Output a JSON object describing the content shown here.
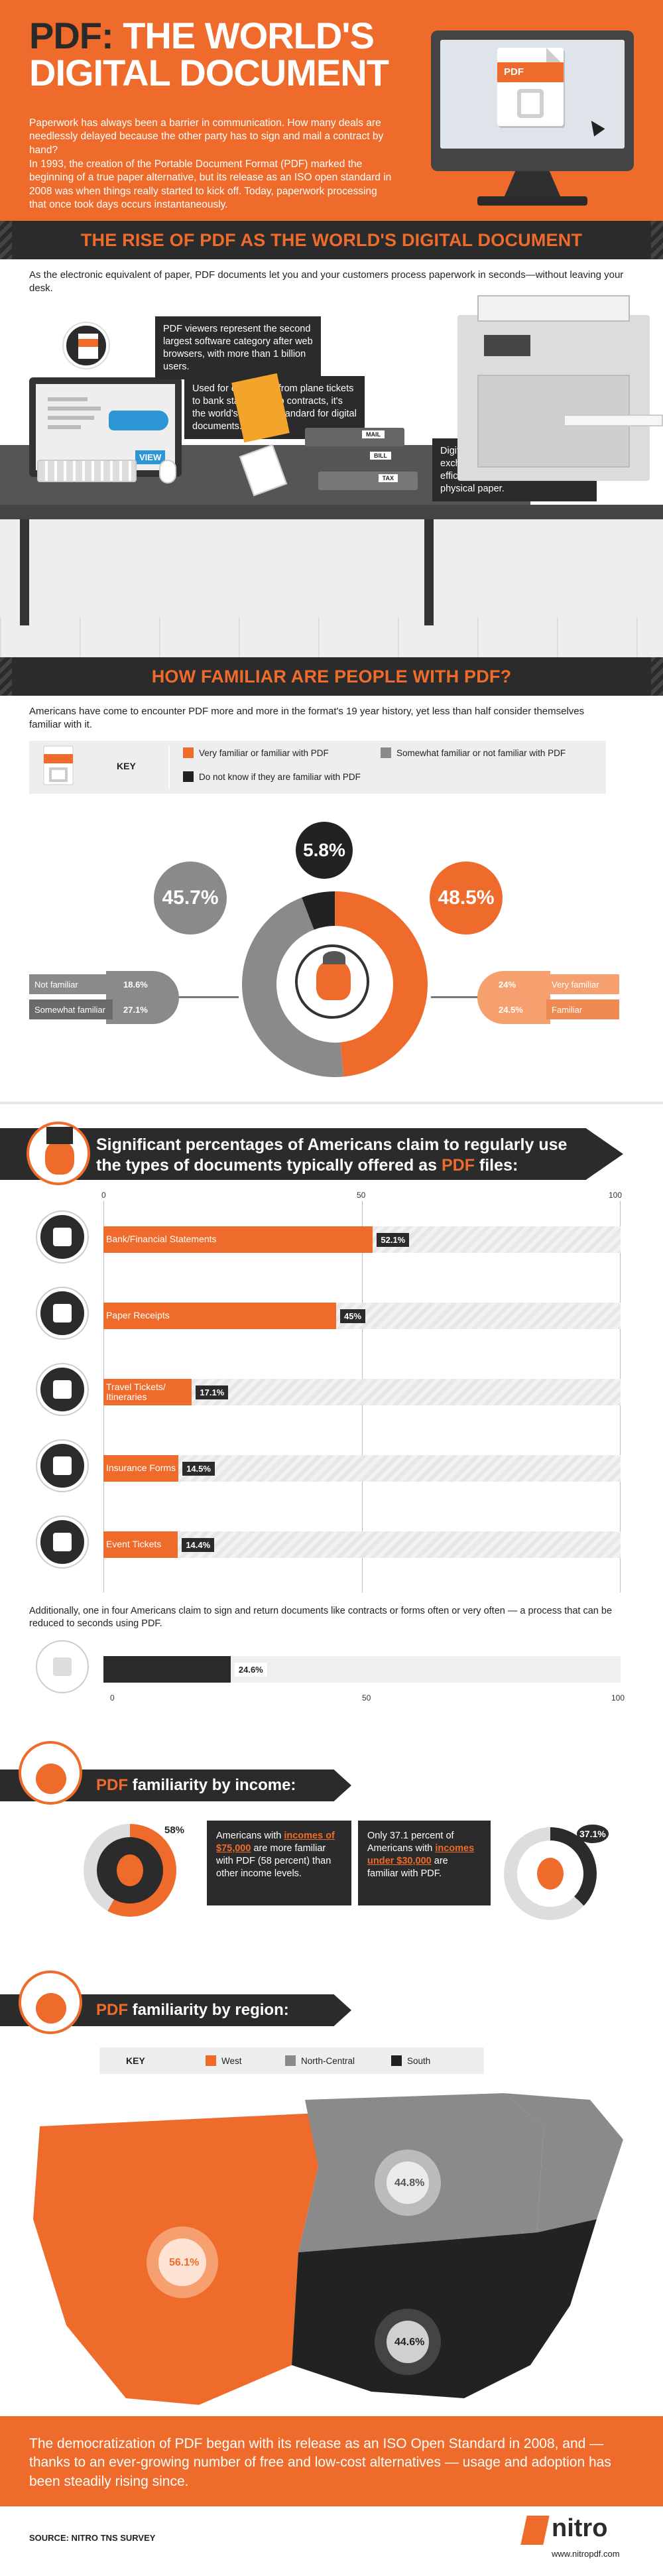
{
  "header": {
    "title_pdf": "PDF:",
    "title_rest": " THE WORLD'S",
    "title_line2": "DIGITAL DOCUMENT",
    "p1": "Paperwork has always been a barrier in communication. How many deals are needlessly delayed because the other party has to sign and mail a contract by hand?",
    "p2": "In 1993, the creation of the Portable Document Format (PDF) marked the beginning of a true paper alternative, but its release as an ISO open standard in 2008 was when things really started to kick off. Today, paperwork processing that once took days occurs instantaneously.",
    "monitor_doc_label": "PDF"
  },
  "rise": {
    "heading": "THE RISE OF PDF AS THE WORLD'S DIGITAL DOCUMENT",
    "intro": "As the electronic equivalent of paper, PDF documents let you and your customers process paperwork in seconds—without leaving your desk.",
    "callout1": "PDF viewers represent the second largest software category after web browsers, with more than 1 billion users.",
    "callout2": "Used for everything from plane tickets to bank statements to contracts, it's the world's de facto standard for digital documents.",
    "callout3": "Digital documents allow people to exchange information more efficiently and more securely than physical paper.",
    "view_label": "VIEW",
    "pdf_badge": "PDF",
    "folder_labels": [
      "MAIL",
      "BILL",
      "TAX"
    ]
  },
  "familiar": {
    "heading": "HOW FAMILIAR ARE PEOPLE WITH PDF?",
    "intro": "Americans have come to encounter PDF more and more in the format's 19 year history, yet less than half consider themselves familiar with it.",
    "key_label": "KEY",
    "key_items": [
      {
        "label": "Very familiar or familiar with PDF",
        "color": "#ef6b2b"
      },
      {
        "label": "Somewhat familiar or not familiar with PDF",
        "color": "#8a8a8a"
      },
      {
        "label": "Do not know if they are familiar with PDF",
        "color": "#222222"
      }
    ],
    "familiar_pct": "48.5%",
    "not_familiar_pct": "45.7%",
    "unknown_pct": "5.8%",
    "left_breakdown": [
      {
        "label": "Not familiar",
        "value": "18.6%"
      },
      {
        "label": "Somewhat familiar",
        "value": "27.1%"
      }
    ],
    "right_breakdown": [
      {
        "label": "Very familiar",
        "value": "24%"
      },
      {
        "label": "Familiar",
        "value": "24.5%"
      }
    ]
  },
  "doctypes": {
    "heading_a": "Significant percentages of Americans claim to regularly use the types of documents typically offered as ",
    "heading_b": "PDF",
    "heading_c": " files:",
    "axis": [
      "0",
      "50",
      "100"
    ],
    "bars": [
      {
        "label": "Bank/Financial Statements",
        "value": 52.1,
        "display": "52.1%",
        "icon": "bank-icon"
      },
      {
        "label": "Paper Receipts",
        "value": 45,
        "display": "45%",
        "icon": "receipt-icon"
      },
      {
        "label": "Travel Tickets/ Itineraries",
        "value": 17.1,
        "display": "17.1%",
        "icon": "luggage-icon"
      },
      {
        "label": "Insurance Forms",
        "value": 14.5,
        "display": "14.5%",
        "icon": "form-icon"
      },
      {
        "label": "Event Tickets",
        "value": 14.4,
        "display": "14.4%",
        "icon": "masks-icon"
      }
    ],
    "note": "Additionally, one in four Americans claim to sign and return documents like contracts or forms often or very often — a process that can be reduced to seconds using PDF.",
    "sign_bar": {
      "value": 24.6,
      "display": "24.6%",
      "icon": "contract-icon"
    }
  },
  "income": {
    "heading_a": "PDF",
    "heading_b": " familiarity by income:",
    "high_pct": "58%",
    "high_text_a": "Americans with ",
    "high_text_b": "incomes of $75,000",
    "high_text_c": " are more familiar with PDF (58 percent) than other income levels.",
    "low_text_a": "Only 37.1 percent of Americans with ",
    "low_text_b": "incomes under $30,000",
    "low_text_c": " are familiar with PDF.",
    "low_pct": "37.1%"
  },
  "region": {
    "heading_a": "PDF",
    "heading_b": " familiarity by region:",
    "key_label": "KEY",
    "key_items": [
      {
        "label": "West",
        "color": "#ef6b2b"
      },
      {
        "label": "North-Central",
        "color": "#8a8a8a"
      },
      {
        "label": "South",
        "color": "#222222"
      }
    ],
    "west_pct": "56.1%",
    "north_pct": "44.8%",
    "south_pct": "44.6%"
  },
  "footer": {
    "text": "The democratization of PDF began with its release as an ISO Open Standard in 2008, and — thanks to an ever-growing number of free and low-cost alternatives — usage and adoption has been steadily rising since.",
    "source": "SOURCE: NITRO TNS SURVEY",
    "logo": "nitro",
    "site": "www.nitropdf.com"
  },
  "chart_data": [
    {
      "type": "pie",
      "categories": [
        "Very familiar or familiar with PDF",
        "Somewhat familiar or not familiar with PDF",
        "Do not know if they are familiar with PDF"
      ],
      "values": [
        48.5,
        45.7,
        5.8
      ]
    },
    {
      "type": "bar",
      "title": "Significant percentages of Americans claim to regularly use the types of documents typically offered as PDF files:",
      "categories": [
        "Bank/Financial Statements",
        "Paper Receipts",
        "Travel Tickets/ Itineraries",
        "Insurance Forms",
        "Event Tickets"
      ],
      "values": [
        52.1,
        45,
        17.1,
        14.5,
        14.4
      ],
      "xlim": [
        0,
        100
      ]
    }
  ]
}
